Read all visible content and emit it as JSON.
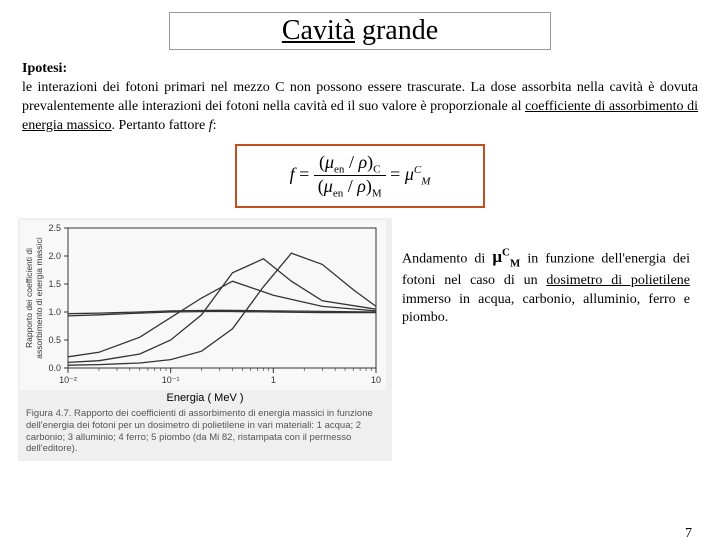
{
  "title": {
    "underlined": "Cavità",
    "plain": " grande"
  },
  "hypothesis_label": "Ipotesi:",
  "hypothesis_text_1": "le interazioni dei fotoni primari nel mezzo C non possono essere trascurate. La dose assorbita nella cavità è dovuta prevalentemente alle interazioni dei fotoni nella cavità ed il suo valore è proporzionale al ",
  "hypothesis_underlined": "coefficiente di assorbimento di energia massico",
  "hypothesis_text_2": ". Pertanto fattore ",
  "hypothesis_f": "f",
  "hypothesis_text_3": ":",
  "formula": {
    "lhs": "f",
    "num": "(μ_en / ρ)_C",
    "den": "(μ_en / ρ)_M",
    "rhs_base": "μ",
    "rhs_sup": "C",
    "rhs_sub": "M"
  },
  "right_text_1": "Andamento di ",
  "right_symbol_base": "μ",
  "right_symbol_sup": "C",
  "right_symbol_sub": "M",
  "right_text_2": " in funzione dell'energia dei fotoni nel caso di un ",
  "right_underlined": "dosimetro di polietilene",
  "right_text_3": " immerso in acqua, carbonio, alluminio, ferro e piombo.",
  "chart": {
    "type": "line",
    "x_label": "Energia ( MeV )",
    "y_label_line1": "Rapporto dei coefficienti di",
    "y_label_line2": "assorbimento di energia massici",
    "x_scale": "log",
    "xlim": [
      0.01,
      10
    ],
    "ylim": [
      0,
      2.5
    ],
    "x_ticks": [
      0.01,
      0.1,
      1,
      10
    ],
    "x_tick_labels": [
      "10⁻²",
      "10⁻¹",
      "1",
      "10"
    ],
    "y_ticks": [
      0,
      0.5,
      1.0,
      1.5,
      2.0,
      2.5
    ],
    "background_color": "#f8f8f8",
    "axis_color": "#333333",
    "line_color": "#333333",
    "line_width": 1.3,
    "series": {
      "1_acqua": {
        "x": [
          0.01,
          0.02,
          0.05,
          0.1,
          0.3,
          1,
          3,
          10
        ],
        "y": [
          0.97,
          0.98,
          1.0,
          1.02,
          1.03,
          1.02,
          1.01,
          1.0
        ]
      },
      "2_carbonio": {
        "x": [
          0.01,
          0.02,
          0.05,
          0.1,
          0.3,
          1,
          3,
          10
        ],
        "y": [
          0.93,
          0.95,
          0.98,
          1.0,
          1.01,
          1.0,
          0.99,
          0.99
        ]
      },
      "3_alluminio": {
        "x": [
          0.01,
          0.02,
          0.05,
          0.1,
          0.2,
          0.4,
          1,
          3,
          10
        ],
        "y": [
          0.2,
          0.28,
          0.55,
          0.9,
          1.25,
          1.55,
          1.3,
          1.1,
          1.02
        ]
      },
      "4_ferro": {
        "x": [
          0.01,
          0.02,
          0.05,
          0.1,
          0.2,
          0.4,
          0.8,
          1.5,
          3,
          10
        ],
        "y": [
          0.1,
          0.13,
          0.25,
          0.5,
          0.95,
          1.7,
          1.95,
          1.55,
          1.2,
          1.05
        ]
      },
      "5_piombo": {
        "x": [
          0.01,
          0.02,
          0.05,
          0.1,
          0.2,
          0.4,
          0.8,
          1.5,
          3,
          6,
          10
        ],
        "y": [
          0.05,
          0.06,
          0.09,
          0.15,
          0.3,
          0.7,
          1.45,
          2.05,
          1.85,
          1.4,
          1.1
        ]
      }
    }
  },
  "fig_caption": "Figura 4.7. Rapporto dei coefficienti di assorbimento di energia massici in funzione dell'energia dei fotoni per un dosimetro di polietilene in vari materiali: 1 acqua; 2 carbonio; 3 alluminio; 4 ferro; 5 piombo (da Mi 82, ristampata con il permesso dell'editore).",
  "page_number": "7"
}
